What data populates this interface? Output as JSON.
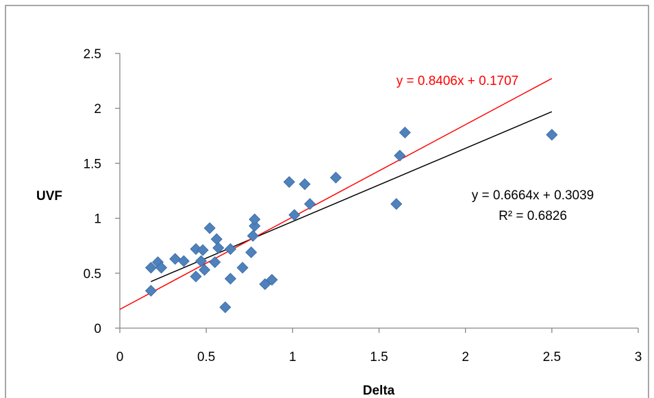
{
  "chart_data": {
    "type": "scatter",
    "title": "",
    "xlabel": "Delta",
    "ylabel": "UVF",
    "xlim": [
      0,
      3
    ],
    "ylim": [
      0,
      2.5
    ],
    "x_ticks": [
      "0",
      "0.5",
      "1",
      "1.5",
      "2",
      "2.5",
      "3"
    ],
    "y_ticks": [
      "0",
      "0.5",
      "1",
      "1.5",
      "2",
      "2.5"
    ],
    "grid": false,
    "legend": "none",
    "marker_color": "#4F81BD",
    "points": [
      [
        0.18,
        0.55
      ],
      [
        0.18,
        0.34
      ],
      [
        0.22,
        0.6
      ],
      [
        0.24,
        0.55
      ],
      [
        0.32,
        0.63
      ],
      [
        0.37,
        0.61
      ],
      [
        0.44,
        0.72
      ],
      [
        0.44,
        0.47
      ],
      [
        0.47,
        0.61
      ],
      [
        0.48,
        0.71
      ],
      [
        0.49,
        0.53
      ],
      [
        0.52,
        0.91
      ],
      [
        0.55,
        0.6
      ],
      [
        0.56,
        0.81
      ],
      [
        0.57,
        0.73
      ],
      [
        0.61,
        0.19
      ],
      [
        0.64,
        0.45
      ],
      [
        0.64,
        0.72
      ],
      [
        0.71,
        0.55
      ],
      [
        0.76,
        0.69
      ],
      [
        0.77,
        0.84
      ],
      [
        0.78,
        0.93
      ],
      [
        0.78,
        0.99
      ],
      [
        0.84,
        0.4
      ],
      [
        0.88,
        0.44
      ],
      [
        0.98,
        1.33
      ],
      [
        1.01,
        1.03
      ],
      [
        1.07,
        1.31
      ],
      [
        1.1,
        1.13
      ],
      [
        1.25,
        1.37
      ],
      [
        1.6,
        1.13
      ],
      [
        1.62,
        1.57
      ],
      [
        1.65,
        1.78
      ],
      [
        2.5,
        1.76
      ]
    ],
    "trendlines": [
      {
        "slope": 0.6664,
        "intercept": 0.3039,
        "x_range": [
          0.18,
          2.5
        ],
        "color": "#000000",
        "label": "y = 0.6664x + 0.3039",
        "r2_label": "R² = 0.6826"
      },
      {
        "slope": 0.8406,
        "intercept": 0.1707,
        "x_range": [
          0,
          2.5
        ],
        "color": "#FF0000",
        "label": "y = 0.8406x + 0.1707"
      }
    ]
  }
}
